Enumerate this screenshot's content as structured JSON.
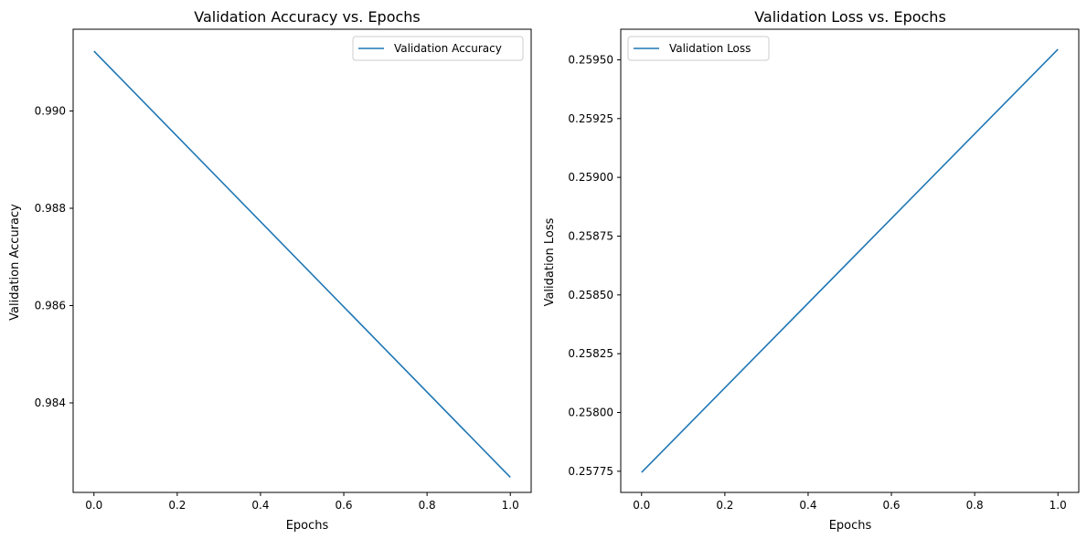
{
  "chart_data": [
    {
      "type": "line",
      "title": "Validation Accuracy vs. Epochs",
      "xlabel": "Epochs",
      "ylabel": "Validation Accuracy",
      "xlim": [
        -0.05,
        1.05
      ],
      "ylim": [
        0.98216,
        0.99168
      ],
      "x_ticks": [
        0.0,
        0.2,
        0.4,
        0.6,
        0.8,
        1.0
      ],
      "x_tick_labels": [
        "0.0",
        "0.2",
        "0.4",
        "0.6",
        "0.8",
        "1.0"
      ],
      "y_ticks": [
        0.984,
        0.986,
        0.988,
        0.99
      ],
      "y_tick_labels": [
        "0.984",
        "0.986",
        "0.988",
        "0.990"
      ],
      "series": [
        {
          "name": "Validation Accuracy",
          "color": "#1f77b4",
          "x": [
            0,
            1
          ],
          "y": [
            0.99123,
            0.98247
          ]
        }
      ],
      "legend_position": "top-right",
      "grid": false
    },
    {
      "type": "line",
      "title": "Validation Loss vs. Epochs",
      "xlabel": "Epochs",
      "ylabel": "Validation Loss",
      "xlim": [
        -0.05,
        1.05
      ],
      "ylim": [
        0.25766,
        0.25963
      ],
      "x_ticks": [
        0.0,
        0.2,
        0.4,
        0.6,
        0.8,
        1.0
      ],
      "x_tick_labels": [
        "0.0",
        "0.2",
        "0.4",
        "0.6",
        "0.8",
        "1.0"
      ],
      "y_ticks": [
        0.25775,
        0.258,
        0.25825,
        0.2585,
        0.25875,
        0.259,
        0.25925,
        0.2595
      ],
      "y_tick_labels": [
        "0.25775",
        "0.25800",
        "0.25825",
        "0.25850",
        "0.25875",
        "0.25900",
        "0.25925",
        "0.25950"
      ],
      "series": [
        {
          "name": "Validation Loss",
          "color": "#1f77b4",
          "x": [
            0,
            1
          ],
          "y": [
            0.257745,
            0.259545
          ]
        }
      ],
      "legend_position": "top-left",
      "grid": false
    }
  ]
}
